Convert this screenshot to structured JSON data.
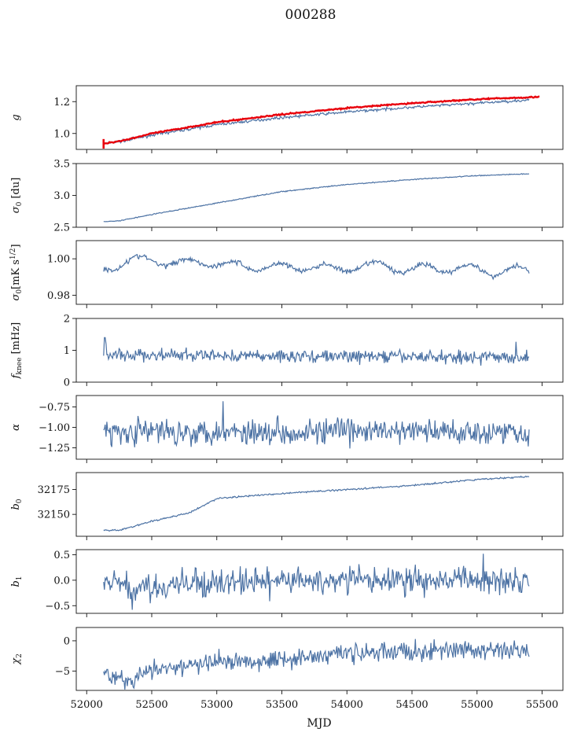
{
  "figure": {
    "title": "000288"
  },
  "colors": {
    "series": "#4c72a4",
    "fit": "#e8000b"
  },
  "chart_data": {
    "type": "line",
    "xlabel": "MJD",
    "xlim": [
      51920,
      55660
    ],
    "xticks": [
      52000,
      52500,
      53000,
      53500,
      54000,
      54500,
      55000,
      55500
    ],
    "xtick_labels": [
      "52000",
      "52500",
      "53000",
      "53500",
      "54000",
      "54500",
      "55000",
      "55500"
    ],
    "x_range_data": [
      52130,
      55400
    ],
    "panels": [
      {
        "name": "g",
        "ylabel": "g",
        "ylim": [
          0.9,
          1.3
        ],
        "yticks": [
          1.0,
          1.2
        ],
        "ytick_labels": [
          "1.0",
          "1.2"
        ],
        "series": [
          {
            "role": "measured",
            "color": "#4c72a4",
            "trend": [
              [
                52130,
                0.935
              ],
              [
                52300,
                0.955
              ],
              [
                52500,
                0.99
              ],
              [
                53000,
                1.055
              ],
              [
                53500,
                1.1
              ],
              [
                54000,
                1.135
              ],
              [
                54500,
                1.165
              ],
              [
                55000,
                1.19
              ],
              [
                55400,
                1.21
              ]
            ],
            "noise": 0.004
          },
          {
            "role": "fit",
            "color": "#e8000b",
            "trend": [
              [
                52130,
                0.935
              ],
              [
                52300,
                0.96
              ],
              [
                52500,
                1.0
              ],
              [
                53000,
                1.07
              ],
              [
                53500,
                1.12
              ],
              [
                54000,
                1.16
              ],
              [
                54500,
                1.19
              ],
              [
                55000,
                1.215
              ],
              [
                55480,
                1.23
              ]
            ],
            "noise": 0.002
          }
        ]
      },
      {
        "name": "sigma0-du",
        "ylabel": "σ0 [du]",
        "ylim": [
          2.5,
          3.5
        ],
        "yticks": [
          2.5,
          3.0,
          3.5
        ],
        "ytick_labels": [
          "2.5",
          "3.0",
          "3.5"
        ],
        "series": [
          {
            "role": "measured",
            "color": "#4c72a4",
            "trend": [
              [
                52130,
                2.585
              ],
              [
                52250,
                2.6
              ],
              [
                52500,
                2.7
              ],
              [
                53000,
                2.88
              ],
              [
                53500,
                3.06
              ],
              [
                54000,
                3.17
              ],
              [
                54500,
                3.25
              ],
              [
                55000,
                3.31
              ],
              [
                55400,
                3.34
              ]
            ],
            "noise": 0.004
          }
        ]
      },
      {
        "name": "sigma0-mk",
        "ylabel": "σ0[mK s^1/2]",
        "ylim": [
          0.975,
          1.01
        ],
        "yticks": [
          0.98,
          1.0
        ],
        "ytick_labels": [
          "0.98",
          "1.00"
        ],
        "series": [
          {
            "role": "measured",
            "color": "#4c72a4",
            "trend": [
              [
                52130,
                0.995
              ],
              [
                52300,
                0.998
              ],
              [
                52500,
                1.0
              ],
              [
                52700,
                0.997
              ],
              [
                52900,
                0.999
              ],
              [
                53100,
                0.996
              ],
              [
                53300,
                0.996
              ],
              [
                53500,
                0.995
              ],
              [
                53700,
                0.996
              ],
              [
                53900,
                0.994
              ],
              [
                54100,
                0.996
              ],
              [
                54300,
                0.996
              ],
              [
                54500,
                0.994
              ],
              [
                54700,
                0.995
              ],
              [
                54900,
                0.995
              ],
              [
                55100,
                0.993
              ],
              [
                55300,
                0.994
              ],
              [
                55400,
                0.993
              ]
            ],
            "oscillation": 0.0025,
            "period": 365,
            "noise": 0.0007
          }
        ]
      },
      {
        "name": "fknee",
        "ylabel": "fknee [mHz]",
        "ylim": [
          0,
          2
        ],
        "yticks": [
          0,
          1,
          2
        ],
        "ytick_labels": [
          "0",
          "1",
          "2"
        ],
        "series": [
          {
            "role": "measured",
            "color": "#4c72a4",
            "trend": [
              [
                52130,
                0.85
              ],
              [
                55400,
                0.78
              ]
            ],
            "noise": 0.1,
            "spikes": [
              [
                52140,
                1.4
              ],
              [
                52150,
                1.2
              ],
              [
                55300,
                1.27
              ]
            ]
          }
        ]
      },
      {
        "name": "alpha",
        "ylabel": "α",
        "ylim": [
          -1.39,
          -0.61
        ],
        "yticks": [
          -1.25,
          -1.0,
          -0.75
        ],
        "ytick_labels": [
          "−1.25",
          "−1.00",
          "−0.75"
        ],
        "series": [
          {
            "role": "measured",
            "color": "#4c72a4",
            "trend": [
              [
                52130,
                -1.05
              ],
              [
                55400,
                -1.05
              ]
            ],
            "noise": 0.08,
            "spikes": [
              [
                53050,
                -0.68
              ]
            ]
          }
        ]
      },
      {
        "name": "b0",
        "ylabel": "b0",
        "ylim": [
          32128,
          32192
        ],
        "yticks": [
          32150,
          32175
        ],
        "ytick_labels": [
          "32150",
          "32175"
        ],
        "series": [
          {
            "role": "measured",
            "color": "#4c72a4",
            "trend": [
              [
                52130,
                32134
              ],
              [
                52250,
                32134
              ],
              [
                52500,
                32143
              ],
              [
                52800,
                32152
              ],
              [
                53000,
                32166
              ],
              [
                53500,
                32171
              ],
              [
                54000,
                32175
              ],
              [
                54500,
                32179
              ],
              [
                55000,
                32185
              ],
              [
                55400,
                32188
              ]
            ],
            "noise": 0.4
          }
        ]
      },
      {
        "name": "b1",
        "ylabel": "b1",
        "ylim": [
          -0.65,
          0.6
        ],
        "yticks": [
          -0.5,
          0.0,
          0.5
        ],
        "ytick_labels": [
          "−0.5",
          "0.0",
          "0.5"
        ],
        "series": [
          {
            "role": "measured",
            "color": "#4c72a4",
            "trend": [
              [
                52130,
                -0.05
              ],
              [
                52400,
                -0.15
              ],
              [
                53000,
                -0.05
              ],
              [
                54000,
                0.0
              ],
              [
                55000,
                0.0
              ],
              [
                55400,
                0.05
              ]
            ],
            "noise": 0.13,
            "spikes": [
              [
                55050,
                0.52
              ],
              [
                52350,
                -0.58
              ]
            ]
          }
        ]
      },
      {
        "name": "chi2",
        "ylabel": "χ2",
        "ylim": [
          -8.2,
          2.2
        ],
        "yticks": [
          -5,
          0
        ],
        "ytick_labels": [
          "−5",
          "0"
        ],
        "series": [
          {
            "role": "measured",
            "color": "#4c72a4",
            "trend": [
              [
                52130,
                -5.3
              ],
              [
                52300,
                -6.5
              ],
              [
                52500,
                -5.0
              ],
              [
                53000,
                -3.5
              ],
              [
                53500,
                -3.0
              ],
              [
                54000,
                -2.0
              ],
              [
                54500,
                -1.8
              ],
              [
                55000,
                -1.5
              ],
              [
                55400,
                -1.8
              ]
            ],
            "noise": 0.8
          }
        ]
      }
    ]
  }
}
